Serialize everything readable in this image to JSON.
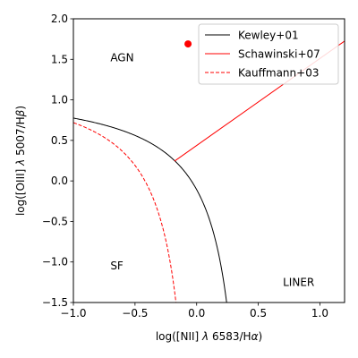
{
  "chart_data": {
    "type": "line",
    "title": "",
    "xlabel_parts": [
      "log([NII] ",
      "λ",
      " 6583/H",
      "α",
      ")"
    ],
    "ylabel_parts": [
      "log([OIII] ",
      "λ",
      " 5007/H",
      "β",
      ")"
    ],
    "xlim": [
      -1.0,
      1.2
    ],
    "ylim": [
      -1.5,
      2.0
    ],
    "x_ticks": [
      -1.0,
      -0.5,
      0.0,
      0.5,
      1.0
    ],
    "x_tick_labels": [
      "−1.0",
      "−0.5",
      "0.0",
      "0.5",
      "1.0"
    ],
    "y_ticks": [
      -1.5,
      -1.0,
      -0.5,
      0.0,
      0.5,
      1.0,
      1.5,
      2.0
    ],
    "y_tick_labels": [
      "−1.5",
      "−1.0",
      "−0.5",
      "0.0",
      "0.5",
      "1.0",
      "1.5",
      "2.0"
    ],
    "grid": false,
    "legend_position": "top-right",
    "series": [
      {
        "name": "Kewley+01",
        "color": "#000000",
        "dash": "solid",
        "kind": "kewley01"
      },
      {
        "name": "Schawinski+07",
        "color": "#ff0000",
        "dash": "solid",
        "kind": "schawinski07",
        "x": [
          -0.18,
          1.2
        ],
        "y": [
          0.244,
          1.725
        ]
      },
      {
        "name": "Kauffmann+03",
        "color": "#ff0000",
        "dash": "dashed",
        "kind": "kauffmann03"
      }
    ],
    "points": [
      {
        "x": -0.07,
        "y": 1.69,
        "color": "#ff0000"
      }
    ],
    "annotations": [
      {
        "text": "AGN",
        "x": -0.7,
        "y": 1.52
      },
      {
        "text": "SF",
        "x": -0.7,
        "y": -1.05
      },
      {
        "text": "LINER",
        "x": 0.7,
        "y": -1.25
      }
    ]
  }
}
